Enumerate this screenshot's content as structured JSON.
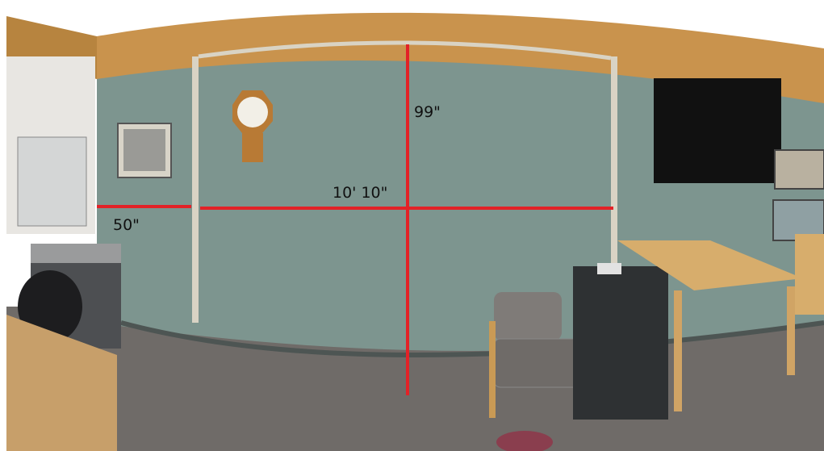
{
  "annotations": {
    "height": "99\"",
    "width": "10' 10\"",
    "left_offset": "50\""
  }
}
